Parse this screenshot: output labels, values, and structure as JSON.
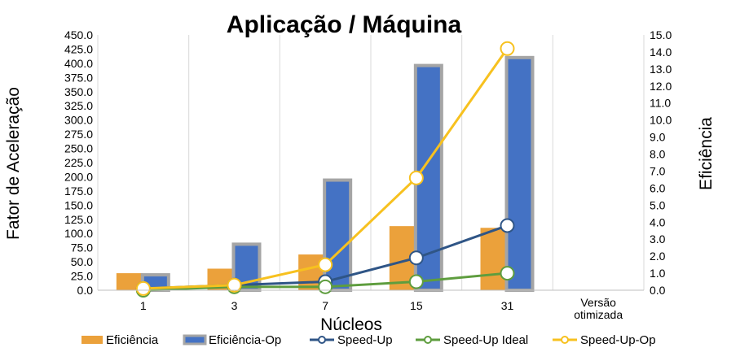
{
  "chart_data": {
    "type": "bar",
    "title": "Aplicação / Máquina",
    "xlabel": "Núcleos",
    "ylabel": "Fator de Aceleração",
    "y2label": "Eficiência",
    "categories": [
      "1",
      "3",
      "7",
      "15",
      "31",
      "Versão otimizada"
    ],
    "ylim": [
      0,
      450
    ],
    "y_ticks": [
      "0.0",
      "25.0",
      "50.0",
      "75.0",
      "100.0",
      "125.0",
      "150.0",
      "175.0",
      "200.0",
      "225.0",
      "250.0",
      "275.0",
      "300.0",
      "325.0",
      "350.0",
      "375.0",
      "400.0",
      "425.0",
      "450.0"
    ],
    "y2lim": [
      0,
      15
    ],
    "y2_ticks": [
      "0.0",
      "1.0",
      "2.0",
      "3.0",
      "4.0",
      "5.0",
      "6.0",
      "7.0",
      "8.0",
      "9.0",
      "10.0",
      "11.0",
      "12.0",
      "13.0",
      "14.0",
      "15.0"
    ],
    "grid": "vertical",
    "legend_position": "bottom",
    "series": [
      {
        "name": "Eficiência",
        "kind": "bar",
        "axis": "left",
        "color": "#eba13b",
        "values": [
          30,
          38,
          63,
          113,
          110,
          null
        ]
      },
      {
        "name": "Eficiência-Op",
        "kind": "bar",
        "axis": "left",
        "color": "#4472c4",
        "border": "#a5a5a5",
        "values": [
          30,
          84,
          197,
          399,
          413,
          null
        ]
      },
      {
        "name": "Speed-Up",
        "kind": "line",
        "axis": "right",
        "color": "#2f5586",
        "values": [
          0.1,
          0.3,
          0.5,
          1.9,
          3.8,
          null
        ]
      },
      {
        "name": "Speed-Up Ideal",
        "kind": "line",
        "axis": "right",
        "color": "#5e9d3e",
        "values": [
          0.0,
          0.2,
          0.2,
          0.5,
          1.0,
          null
        ]
      },
      {
        "name": "Speed-Up-Op",
        "kind": "line",
        "axis": "right",
        "color": "#f7c11f",
        "values": [
          0.1,
          0.3,
          1.5,
          6.6,
          14.2,
          null
        ]
      }
    ]
  }
}
